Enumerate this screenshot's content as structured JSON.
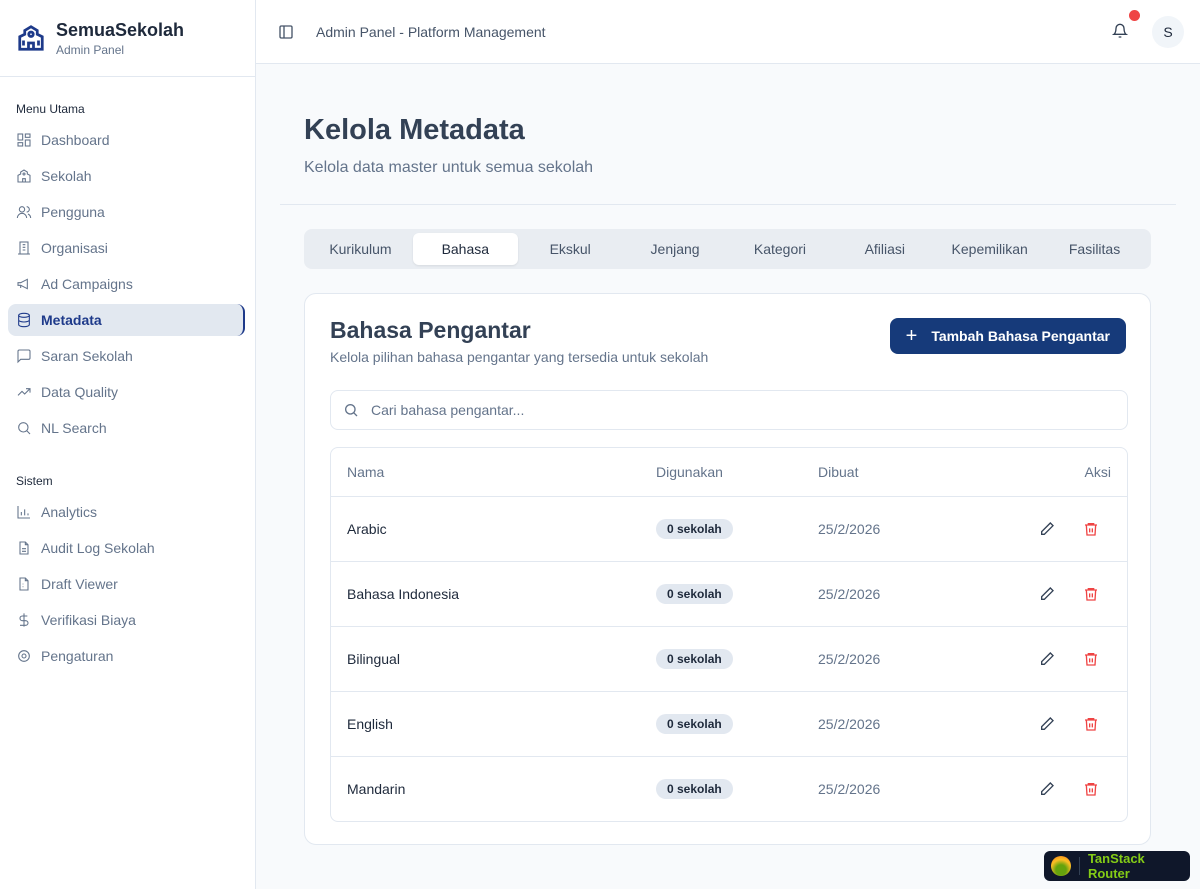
{
  "brand": {
    "title": "SemuaSekolah",
    "subtitle": "Admin Panel"
  },
  "sidebar": {
    "main_label": "Menu Utama",
    "main_items": [
      {
        "label": "Dashboard",
        "icon": "grid-icon"
      },
      {
        "label": "Sekolah",
        "icon": "school-icon"
      },
      {
        "label": "Pengguna",
        "icon": "users-icon"
      },
      {
        "label": "Organisasi",
        "icon": "building-icon"
      },
      {
        "label": "Ad Campaigns",
        "icon": "megaphone-icon"
      },
      {
        "label": "Metadata",
        "icon": "database-icon",
        "active": true
      },
      {
        "label": "Saran Sekolah",
        "icon": "message-icon"
      },
      {
        "label": "Data Quality",
        "icon": "trending-icon"
      },
      {
        "label": "NL Search",
        "icon": "search-icon"
      }
    ],
    "system_label": "Sistem",
    "system_items": [
      {
        "label": "Analytics",
        "icon": "chart-icon"
      },
      {
        "label": "Audit Log Sekolah",
        "icon": "file-icon"
      },
      {
        "label": "Draft Viewer",
        "icon": "file-draft-icon"
      },
      {
        "label": "Verifikasi Biaya",
        "icon": "dollar-icon"
      },
      {
        "label": "Pengaturan",
        "icon": "gear-icon"
      }
    ]
  },
  "header": {
    "title": "Admin Panel - Platform Management",
    "avatar": "S"
  },
  "page": {
    "title": "Kelola Metadata",
    "subtitle": "Kelola data master untuk semua sekolah"
  },
  "tabs": [
    "Kurikulum",
    "Bahasa",
    "Ekskul",
    "Jenjang",
    "Kategori",
    "Afiliasi",
    "Kepemilikan",
    "Fasilitas"
  ],
  "active_tab": "Bahasa",
  "card": {
    "title": "Bahasa Pengantar",
    "description": "Kelola pilihan bahasa pengantar yang tersedia untuk sekolah",
    "add_label": "Tambah Bahasa Pengantar",
    "search_placeholder": "Cari bahasa pengantar..."
  },
  "table": {
    "headers": [
      "Nama",
      "Digunakan",
      "Dibuat",
      "Aksi"
    ],
    "rows": [
      {
        "name": "Arabic",
        "used": "0 sekolah",
        "created": "25/2/2026"
      },
      {
        "name": "Bahasa Indonesia",
        "used": "0 sekolah",
        "created": "25/2/2026"
      },
      {
        "name": "Bilingual",
        "used": "0 sekolah",
        "created": "25/2/2026"
      },
      {
        "name": "English",
        "used": "0 sekolah",
        "created": "25/2/2026"
      },
      {
        "name": "Mandarin",
        "used": "0 sekolah",
        "created": "25/2/2026"
      }
    ]
  },
  "devtools": {
    "label": "TanStack Router"
  },
  "colors": {
    "primary": "#163a7a",
    "danger": "#ef4444",
    "devtools_text": "#84cc16"
  }
}
